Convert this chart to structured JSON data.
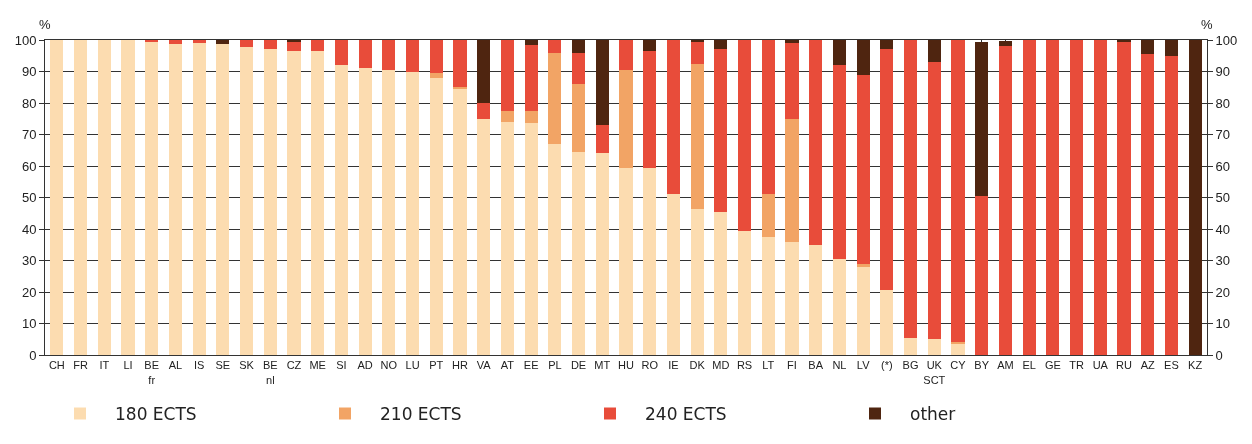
{
  "chart_data": {
    "type": "bar",
    "stacked": true,
    "categories": [
      "CH",
      "FR",
      "IT",
      "LI",
      "BE fr",
      "AL",
      "IS",
      "SE",
      "SK",
      "BE nl",
      "CZ",
      "ME",
      "SI",
      "AD",
      "NO",
      "LU",
      "PT",
      "HR",
      "VA",
      "AT",
      "EE",
      "PL",
      "DE",
      "MT",
      "HU",
      "RO",
      "IE",
      "DK",
      "MD",
      "RS",
      "LT",
      "FI",
      "BA",
      "NL",
      "LV",
      "(*)",
      "BG",
      "UK SCT",
      "CY",
      "BY",
      "AM",
      "EL",
      "GE",
      "TR",
      "UA",
      "RU",
      "AZ",
      "ES",
      "KZ"
    ],
    "series": [
      {
        "name": "180 ECTS",
        "color": "#fcdcb0",
        "values": [
          100,
          100,
          100,
          100,
          99.3,
          98.8,
          99,
          98.8,
          97.8,
          97,
          96.5,
          96.5,
          92,
          91,
          90.5,
          90,
          88,
          84.5,
          75,
          74,
          73.5,
          67,
          64.5,
          64,
          59.5,
          59.5,
          51,
          46.5,
          45.5,
          39.5,
          37.5,
          36,
          35,
          30.5,
          28,
          20.5,
          5.5,
          5,
          3.5,
          null,
          null,
          0,
          0,
          0,
          0,
          0,
          0,
          0,
          0
        ]
      },
      {
        "name": "210 ECTS",
        "color": "#f2a465",
        "values": [
          0,
          0,
          0,
          0,
          0,
          0,
          0,
          0,
          0,
          0,
          0,
          0,
          0,
          0,
          0,
          0,
          1.5,
          0.5,
          0,
          3.5,
          4,
          29,
          21.5,
          0,
          31,
          0,
          0,
          46,
          0,
          0,
          13.5,
          39,
          0,
          0,
          1,
          0,
          0,
          0,
          0.5,
          0,
          0,
          0,
          0,
          0,
          0,
          0,
          0,
          0,
          0
        ]
      },
      {
        "name": "240 ECTS",
        "color": "#e84c3a",
        "values": [
          0,
          0,
          0,
          0,
          0.7,
          1.2,
          1,
          0,
          2.2,
          3,
          3,
          3.5,
          8,
          9,
          9.5,
          10,
          10.5,
          15,
          5,
          22.5,
          21,
          4,
          10,
          9,
          9.5,
          37,
          49,
          7,
          51.5,
          60.5,
          49,
          24,
          65,
          61.5,
          60,
          76.5,
          94.5,
          88,
          96,
          50.5,
          98,
          100,
          100,
          100,
          100,
          99.5,
          95.5,
          95,
          0
        ]
      },
      {
        "name": "other",
        "color": "#4f2510",
        "values": [
          0,
          0,
          0,
          0,
          0,
          0,
          0,
          1.2,
          0,
          0,
          0.5,
          0,
          0,
          0,
          0,
          0,
          0,
          0,
          20,
          0,
          1.5,
          0,
          4,
          27,
          0,
          3.5,
          0,
          0.5,
          3,
          0,
          0,
          1,
          0,
          8,
          11,
          3,
          0,
          7,
          0,
          49,
          1.8,
          0,
          0,
          0,
          0,
          0.5,
          4.5,
          5,
          100
        ]
      }
    ],
    "ylabel": "%",
    "y2label": "%",
    "ylim": [
      0,
      100
    ],
    "yticks": [
      0,
      10,
      20,
      30,
      40,
      50,
      60,
      70,
      80,
      90,
      100
    ],
    "y2lim": [
      0,
      100
    ],
    "y2ticks": [
      0,
      10,
      20,
      30,
      40,
      50,
      60,
      70,
      80,
      90,
      100
    ],
    "grid": true,
    "legend": "bottom"
  }
}
